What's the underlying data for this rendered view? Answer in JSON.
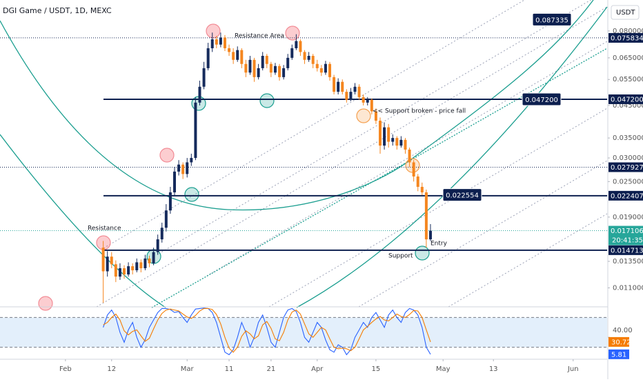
{
  "chart_data": {
    "type": "candlestick",
    "title": "DGI Game / USDT, 1D, MEXC",
    "currency": "USDT",
    "countdown": "20:41:35",
    "annotations": [
      "Resistance Area",
      "Resistance",
      "<< Support broken - price fall",
      "Support",
      "Entry"
    ],
    "log_y": true,
    "xlim": [
      -24.6,
      120.1
    ],
    "xticks": [
      {
        "value": -9,
        "label": "Feb"
      },
      {
        "value": 2,
        "label": "12"
      },
      {
        "value": 20,
        "label": "Mar"
      },
      {
        "value": 30,
        "label": "11"
      },
      {
        "value": 40,
        "label": "21"
      },
      {
        "value": 51,
        "label": "Apr"
      },
      {
        "value": 65,
        "label": "15"
      },
      {
        "value": 81,
        "label": "May"
      },
      {
        "value": 93,
        "label": "13"
      },
      {
        "value": 112,
        "label": "Jun"
      }
    ],
    "ylim": [
      0.0095,
      0.1016
    ],
    "yticks": [
      {
        "value": 0.08,
        "label": "0.080000"
      },
      {
        "value": 0.065,
        "label": "0.065000"
      },
      {
        "value": 0.055,
        "label": "0.055000"
      },
      {
        "value": 0.045,
        "label": "0.045000"
      },
      {
        "value": 0.035,
        "label": "0.035000"
      },
      {
        "value": 0.03,
        "label": "0.030000"
      },
      {
        "value": 0.025,
        "label": "0.025000"
      },
      {
        "value": 0.019,
        "label": "0.019000"
      },
      {
        "value": 0.0135,
        "label": "0.013500"
      },
      {
        "value": 0.011,
        "label": "0.011000"
      }
    ],
    "up_color": "#152a5c",
    "down_color": "#f5861f",
    "open": [
      0.015,
      0.0125,
      0.014,
      0.0132,
      0.012,
      0.0128,
      0.0122,
      0.013,
      0.0126,
      0.0134,
      0.0128,
      0.0138,
      0.0133,
      0.0145,
      0.016,
      0.0175,
      0.02,
      0.023,
      0.027,
      0.0285,
      0.0265,
      0.029,
      0.03,
      0.046,
      0.052,
      0.06,
      0.07,
      0.075,
      0.072,
      0.076,
      0.07,
      0.068,
      0.064,
      0.069,
      0.062,
      0.058,
      0.064,
      0.056,
      0.06,
      0.066,
      0.062,
      0.058,
      0.061,
      0.056,
      0.06,
      0.065,
      0.07,
      0.074,
      0.068,
      0.064,
      0.066,
      0.062,
      0.06,
      0.058,
      0.062,
      0.056,
      0.05,
      0.054,
      0.05,
      0.047,
      0.05,
      0.052,
      0.048,
      0.046,
      0.047,
      0.043,
      0.04,
      0.033,
      0.038,
      0.034,
      0.035,
      0.033,
      0.0345,
      0.032,
      0.029,
      0.026,
      0.024,
      0.023,
      0.016
    ],
    "high": [
      0.0158,
      0.0146,
      0.0145,
      0.0136,
      0.0133,
      0.0131,
      0.0134,
      0.0133,
      0.0138,
      0.0137,
      0.0142,
      0.0141,
      0.015,
      0.0166,
      0.0182,
      0.021,
      0.024,
      0.028,
      0.0295,
      0.029,
      0.03,
      0.031,
      0.048,
      0.0545,
      0.063,
      0.073,
      0.079,
      0.077,
      0.079,
      0.0775,
      0.072,
      0.07,
      0.071,
      0.07,
      0.064,
      0.066,
      0.065,
      0.062,
      0.068,
      0.067,
      0.063,
      0.0625,
      0.062,
      0.0615,
      0.067,
      0.072,
      0.078,
      0.075,
      0.069,
      0.068,
      0.067,
      0.064,
      0.0615,
      0.0635,
      0.063,
      0.057,
      0.0555,
      0.055,
      0.051,
      0.0515,
      0.0535,
      0.053,
      0.049,
      0.048,
      0.0475,
      0.044,
      0.041,
      0.0395,
      0.039,
      0.036,
      0.0355,
      0.0355,
      0.035,
      0.0325,
      0.0295,
      0.0265,
      0.0248,
      0.0235,
      0.018
    ],
    "low": [
      0.0098,
      0.012,
      0.0128,
      0.0115,
      0.0117,
      0.0118,
      0.012,
      0.0122,
      0.0124,
      0.0124,
      0.0126,
      0.0129,
      0.0131,
      0.0142,
      0.0156,
      0.017,
      0.0195,
      0.0225,
      0.0262,
      0.0255,
      0.0258,
      0.0282,
      0.0295,
      0.045,
      0.051,
      0.059,
      0.068,
      0.07,
      0.0705,
      0.0685,
      0.066,
      0.062,
      0.063,
      0.06,
      0.056,
      0.057,
      0.054,
      0.055,
      0.059,
      0.06,
      0.056,
      0.057,
      0.0545,
      0.055,
      0.059,
      0.064,
      0.069,
      0.066,
      0.062,
      0.063,
      0.06,
      0.0585,
      0.0565,
      0.057,
      0.0545,
      0.049,
      0.049,
      0.049,
      0.046,
      0.0465,
      0.049,
      0.047,
      0.045,
      0.045,
      0.042,
      0.039,
      0.031,
      0.032,
      0.0325,
      0.033,
      0.032,
      0.0325,
      0.031,
      0.028,
      0.025,
      0.0232,
      0.0225,
      0.015,
      0.0158
    ],
    "close": [
      0.0125,
      0.014,
      0.0132,
      0.012,
      0.0128,
      0.0122,
      0.013,
      0.0126,
      0.0134,
      0.0128,
      0.0138,
      0.0133,
      0.0145,
      0.016,
      0.0175,
      0.02,
      0.023,
      0.027,
      0.0285,
      0.0265,
      0.029,
      0.03,
      0.046,
      0.052,
      0.06,
      0.07,
      0.075,
      0.072,
      0.076,
      0.07,
      0.068,
      0.064,
      0.069,
      0.062,
      0.058,
      0.064,
      0.056,
      0.06,
      0.066,
      0.062,
      0.058,
      0.061,
      0.056,
      0.06,
      0.065,
      0.07,
      0.074,
      0.068,
      0.064,
      0.066,
      0.062,
      0.06,
      0.058,
      0.062,
      0.056,
      0.05,
      0.054,
      0.05,
      0.047,
      0.05,
      0.052,
      0.048,
      0.046,
      0.047,
      0.043,
      0.04,
      0.033,
      0.038,
      0.034,
      0.035,
      0.033,
      0.0345,
      0.032,
      0.029,
      0.026,
      0.024,
      0.023,
      0.016,
      0.0171
    ],
    "price_lines": [
      {
        "value": 0.075834,
        "label": "0.075834",
        "style": "dotted",
        "color": "#0c1f4f"
      },
      {
        "value": 0.0472,
        "label": "0.047200",
        "style": "solid",
        "color": "#0c1f4f"
      },
      {
        "value": 0.027927,
        "label": "0.027927",
        "style": "dotted",
        "color": "#0c1f4f"
      },
      {
        "value": 0.022407,
        "label": "0.022407",
        "style": "solid",
        "color": "#0c1f4f"
      },
      {
        "value": 0.017106,
        "label": "0.017106",
        "style": "dotted",
        "color": "#26a69a"
      },
      {
        "value": 0.014713,
        "label": "0.014713",
        "style": "solid",
        "color": "#0c1f4f"
      }
    ],
    "callouts": [
      {
        "value": 0.087335,
        "label": "0.087335"
      },
      {
        "value": 0.0472,
        "label": "0.047200"
      },
      {
        "value": 0.022554,
        "label": "0.022554"
      }
    ],
    "oscillator": {
      "ylim": [
        0,
        100
      ],
      "yticks": [
        {
          "value": 40,
          "label": "40.00"
        }
      ],
      "bands": [
        80,
        20
      ],
      "series": [
        {
          "color": "#2962ff",
          "values": [
            60,
            85,
            95,
            80,
            50,
            30,
            55,
            70,
            40,
            20,
            35,
            60,
            75,
            90,
            98,
            98,
            96,
            90,
            92,
            80,
            70,
            85,
            97,
            98,
            99,
            98,
            90,
            70,
            40,
            10,
            5,
            15,
            40,
            70,
            50,
            20,
            40,
            70,
            85,
            60,
            30,
            20,
            50,
            80,
            95,
            98,
            92,
            70,
            40,
            30,
            50,
            70,
            60,
            35,
            15,
            10,
            25,
            20,
            5,
            15,
            40,
            55,
            70,
            60,
            80,
            90,
            75,
            60,
            85,
            95,
            80,
            70,
            90,
            98,
            95,
            85,
            60,
            20,
            5.81
          ]
        },
        {
          "color": "#f57c00",
          "values": [
            65,
            70,
            80,
            87,
            75,
            53,
            45,
            52,
            55,
            43,
            32,
            38,
            57,
            75,
            88,
            95,
            97,
            95,
            93,
            87,
            81,
            78,
            84,
            93,
            98,
            98,
            96,
            86,
            67,
            40,
            18,
            10,
            20,
            42,
            53,
            47,
            37,
            43,
            65,
            72,
            58,
            37,
            33,
            50,
            75,
            91,
            95,
            87,
            67,
            47,
            40,
            50,
            60,
            55,
            37,
            20,
            17,
            18,
            17,
            13,
            20,
            37,
            55,
            62,
            70,
            77,
            82,
            75,
            73,
            80,
            87,
            82,
            80,
            86,
            94,
            93,
            80,
            55,
            30.72
          ]
        }
      ]
    }
  }
}
